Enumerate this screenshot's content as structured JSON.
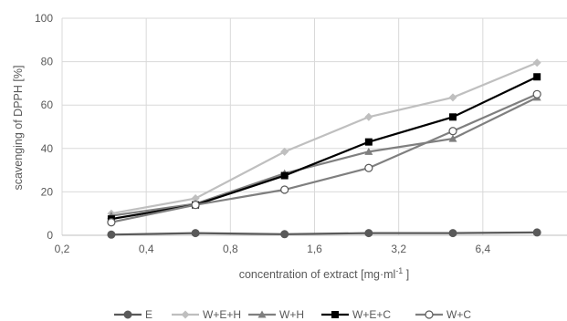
{
  "chart_data": {
    "type": "line",
    "xlabel": "concentration of extract [mg·ml",
    "xlabel_sup": "-1",
    "xlabel_end": " ]",
    "ylabel": "scavenging of DPPH [%]",
    "ylim": [
      0,
      100
    ],
    "y_ticks": [
      "0",
      "20",
      "40",
      "60",
      "80",
      "100"
    ],
    "x_ticks": [
      "0,2",
      "0,4",
      "0,8",
      "1,6",
      "3,2",
      "6,4"
    ],
    "x_scale": "log2",
    "x_domain": [
      0.2,
      12.8
    ],
    "x": [
      0.3,
      0.6,
      1.25,
      2.5,
      5,
      10
    ],
    "grid": "vertical and horizontal",
    "legend_position": "bottom",
    "series": [
      {
        "name": "E",
        "marker": "circle",
        "color": "#595959",
        "fill": "#595959",
        "line": "#595959",
        "values": [
          0.3,
          1.0,
          0.5,
          1.0,
          1.0,
          1.3
        ]
      },
      {
        "name": "W+E+H",
        "marker": "diamond",
        "color": "#bfbfbf",
        "fill": "#bfbfbf",
        "line": "#bfbfbf",
        "values": [
          10,
          17,
          38.5,
          54.5,
          63.5,
          79.5
        ]
      },
      {
        "name": "W+H",
        "marker": "triangle",
        "color": "#7f7f7f",
        "fill": "#7f7f7f",
        "line": "#7f7f7f",
        "values": [
          9,
          14.5,
          28.5,
          38.5,
          44.5,
          63.5
        ]
      },
      {
        "name": "W+E+C",
        "marker": "square",
        "color": "#000000",
        "fill": "#000000",
        "line": "#000000",
        "values": [
          7.5,
          14,
          27.5,
          43,
          54.5,
          73
        ]
      },
      {
        "name": "W+C",
        "marker": "circle-open",
        "color": "#595959",
        "fill": "#ffffff",
        "line": "#7f7f7f",
        "values": [
          6,
          14,
          21,
          31,
          48,
          65
        ]
      }
    ]
  }
}
